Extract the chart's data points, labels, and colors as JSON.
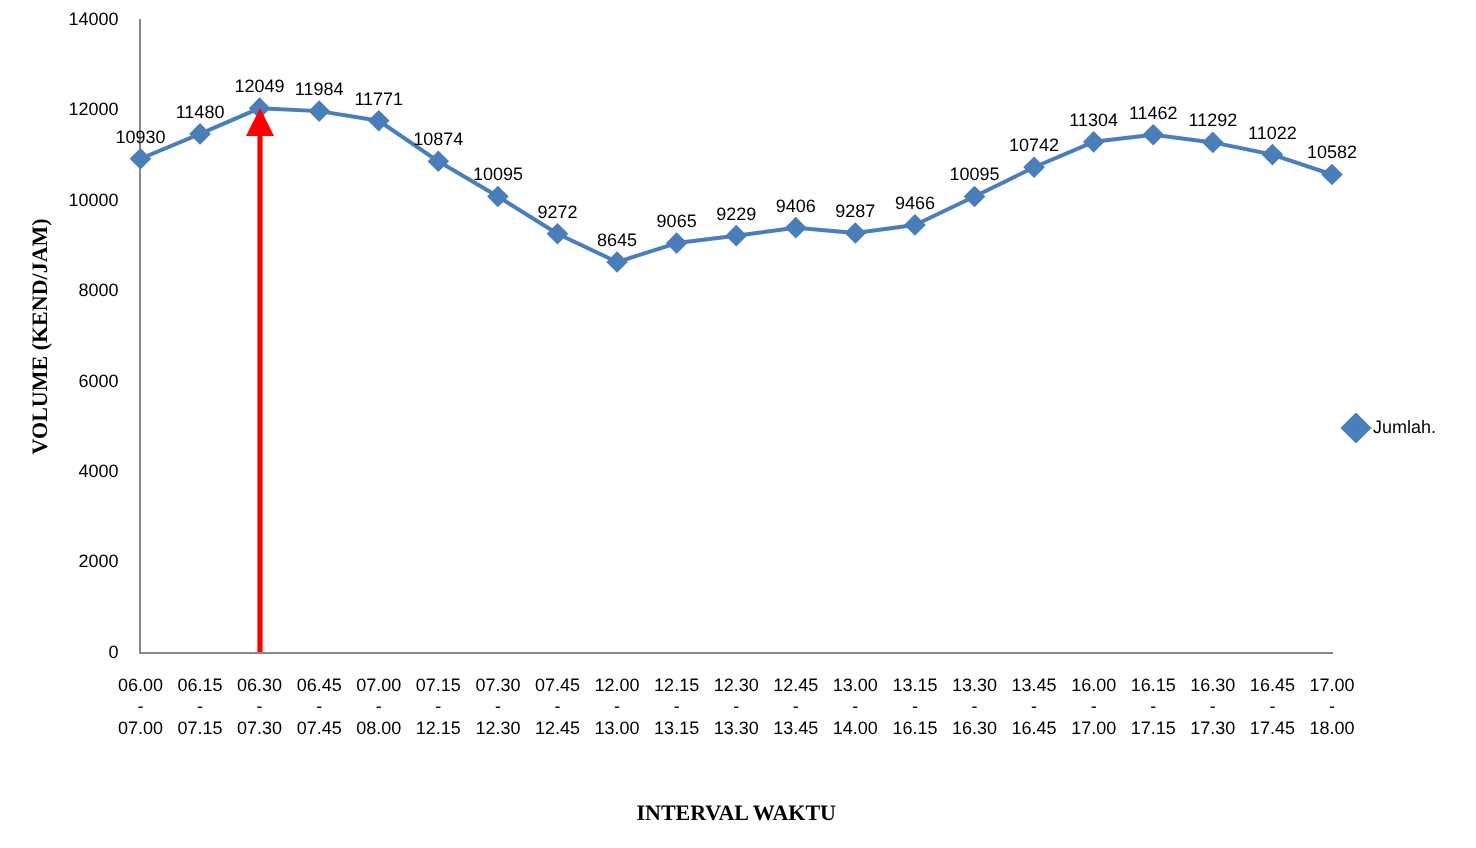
{
  "chart_data": {
    "type": "line",
    "xlabel": "INTERVAL WAKTU",
    "ylabel": "VOLUME (KEND/JAM)",
    "categories": [
      "06.00 - 07.00",
      "06.15 - 07.15",
      "06.30 - 07.30",
      "06.45 - 07.45",
      "07.00 - 08.00",
      "07.15 - 12.15",
      "07.30 - 12.30",
      "07.45 - 12.45",
      "12.00 - 13.00",
      "12.15 - 13.15",
      "12.30 - 13.30",
      "12.45 - 13.45",
      "13.00 - 14.00",
      "13.15 - 16.15",
      "13.30 - 16.30",
      "13.45 - 16.45",
      "16.00 - 17.00",
      "16.15 - 17.15",
      "16.30 - 17.30",
      "16.45 - 17.45",
      "17.00 - 18.00"
    ],
    "series": [
      {
        "name": "Jumlah.",
        "color": "#4a7ebb",
        "values": [
          10930,
          11480,
          12049,
          11984,
          11771,
          10874,
          10095,
          9272,
          8645,
          9065,
          9229,
          9406,
          9287,
          9466,
          10095,
          10742,
          11304,
          11462,
          11292,
          11022,
          10582
        ]
      }
    ],
    "ylim": [
      0,
      14000
    ],
    "yticks": [
      0,
      2000,
      4000,
      6000,
      8000,
      10000,
      12000,
      14000
    ],
    "grid": false,
    "legend": "right",
    "marker": "diamond",
    "data_labels": true
  }
}
